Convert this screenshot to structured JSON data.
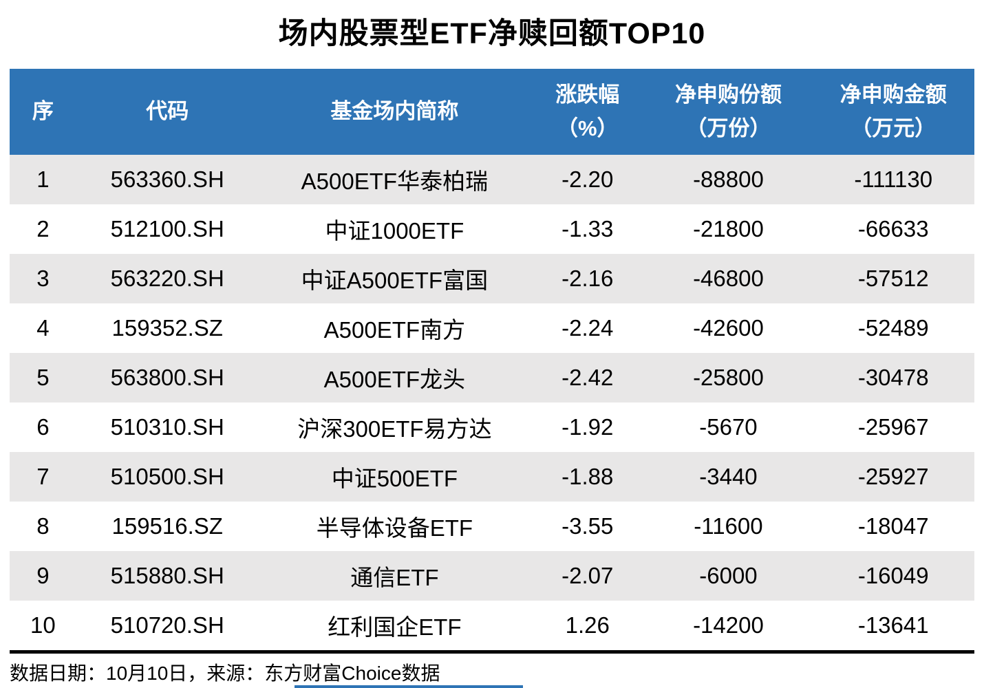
{
  "title": "场内股票型ETF净赎回额TOP10",
  "header": {
    "columns": [
      {
        "label": "序",
        "sublabel": ""
      },
      {
        "label": "代码",
        "sublabel": ""
      },
      {
        "label": "基金场内简称",
        "sublabel": ""
      },
      {
        "label": "涨跌幅",
        "sublabel": "（%）"
      },
      {
        "label": "净申购份额",
        "sublabel": "（万份）"
      },
      {
        "label": "净申购金额",
        "sublabel": "（万元）"
      }
    ]
  },
  "chart_data": {
    "type": "table",
    "title": "场内股票型ETF净赎回额TOP10",
    "columns": [
      "序",
      "代码",
      "基金场内简称",
      "涨跌幅（%）",
      "净申购份额（万份）",
      "净申购金额（万元）"
    ],
    "rows": [
      [
        "1",
        "563360.SH",
        "A500ETF华泰柏瑞",
        "-2.20",
        "-88800",
        "-111130"
      ],
      [
        "2",
        "512100.SH",
        "中证1000ETF",
        "-1.33",
        "-21800",
        "-66633"
      ],
      [
        "3",
        "563220.SH",
        "中证A500ETF富国",
        "-2.16",
        "-46800",
        "-57512"
      ],
      [
        "4",
        "159352.SZ",
        "A500ETF南方",
        "-2.24",
        "-42600",
        "-52489"
      ],
      [
        "5",
        "563800.SH",
        "A500ETF龙头",
        "-2.42",
        "-25800",
        "-30478"
      ],
      [
        "6",
        "510310.SH",
        "沪深300ETF易方达",
        "-1.92",
        "-5670",
        "-25967"
      ],
      [
        "7",
        "510500.SH",
        "中证500ETF",
        "-1.88",
        "-3440",
        "-25927"
      ],
      [
        "8",
        "159516.SZ",
        "半导体设备ETF",
        "-3.55",
        "-11600",
        "-18047"
      ],
      [
        "9",
        "515880.SH",
        "通信ETF",
        "-2.07",
        "-6000",
        "-16049"
      ],
      [
        "10",
        "510720.SH",
        "红利国企ETF",
        "1.26",
        "-14200",
        "-13641"
      ]
    ]
  },
  "footer": {
    "text": "数据日期：10月10日，来源：东方财富Choice数据"
  },
  "colors": {
    "header_bg": "#2E74B5",
    "row_alt_bg": "#E8E7E7",
    "header_text": "#FFFFFF",
    "body_text": "#000000",
    "footer_rule": "#000000",
    "bottom_line": "#2E74B5"
  }
}
